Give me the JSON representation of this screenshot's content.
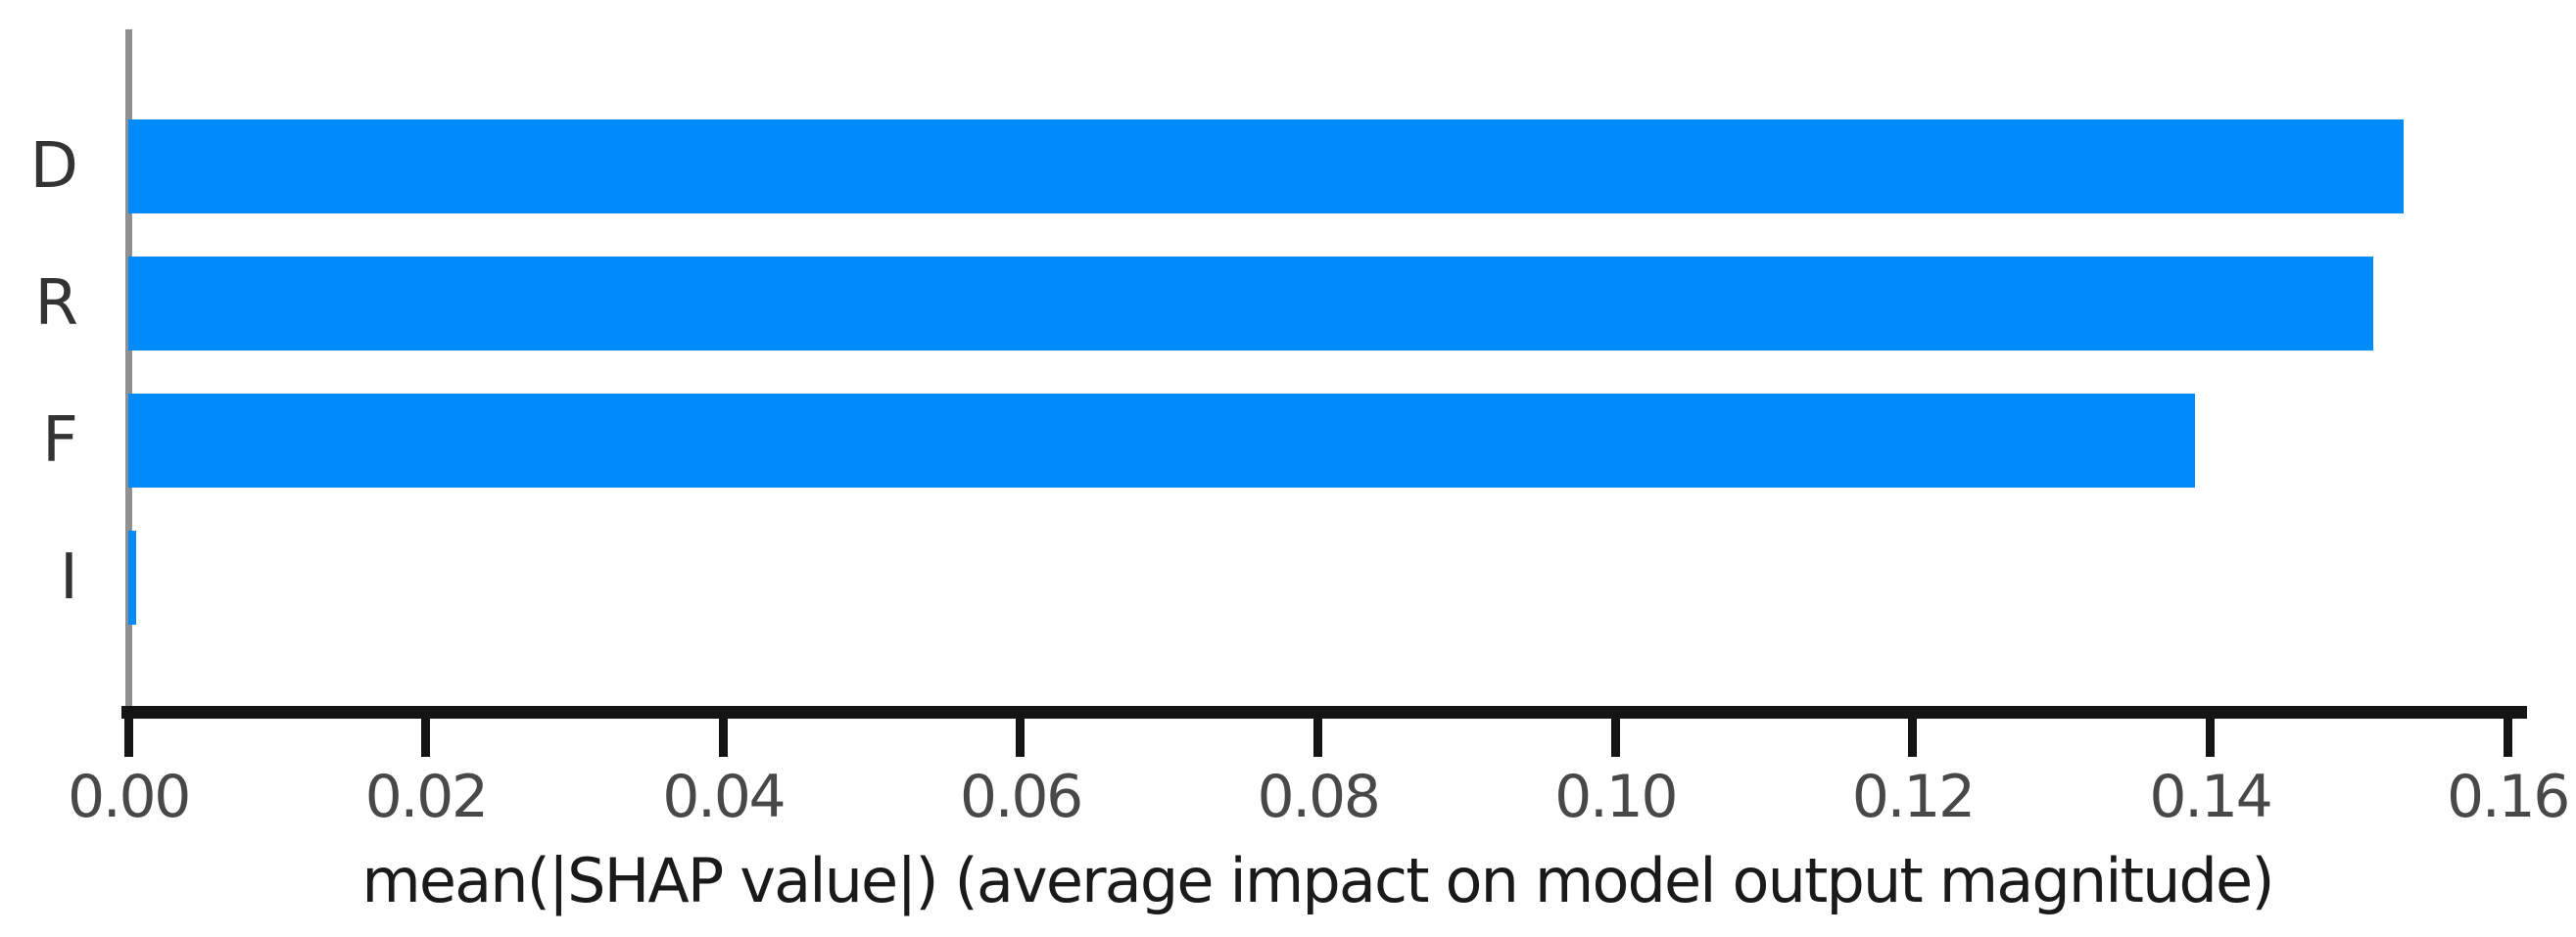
{
  "chart_data": {
    "type": "bar",
    "orientation": "horizontal",
    "title": "",
    "xlabel": "mean(|SHAP value|) (average impact on model output magnitude)",
    "ylabel": "",
    "categories": [
      "D",
      "R",
      "F",
      "I"
    ],
    "values": [
      0.153,
      0.151,
      0.139,
      0.0005
    ],
    "xlim": [
      0,
      0.16
    ],
    "xticks": [
      0.0,
      0.02,
      0.04,
      0.06,
      0.08,
      0.1,
      0.12,
      0.14,
      0.16
    ],
    "xtick_labels": [
      "0.00",
      "0.02",
      "0.04",
      "0.06",
      "0.08",
      "0.10",
      "0.12",
      "0.14",
      "0.16"
    ],
    "grid": false,
    "legend": null,
    "bar_color": "#008bfb",
    "spine_color": "#8f8f8f",
    "axis_color": "#141414",
    "tick_label_color": "#484848",
    "category_label_color": "#333333",
    "background_color": "#ffffff"
  }
}
